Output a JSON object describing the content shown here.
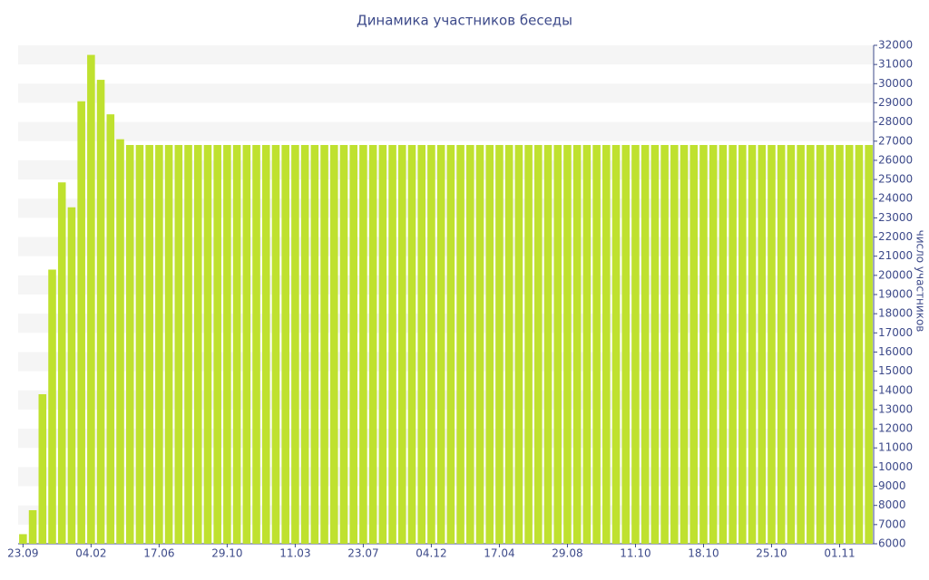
{
  "chart_data": {
    "type": "bar",
    "title": "Динамика участников беседы",
    "y_label": "число участников",
    "categories": [
      "23.09",
      null,
      null,
      null,
      null,
      null,
      null,
      "04.02",
      null,
      null,
      null,
      null,
      null,
      null,
      "17.06",
      null,
      null,
      null,
      null,
      null,
      null,
      "29.10",
      null,
      null,
      null,
      null,
      null,
      null,
      "11.03",
      null,
      null,
      null,
      null,
      null,
      null,
      "23.07",
      null,
      null,
      null,
      null,
      null,
      null,
      "04.12",
      null,
      null,
      null,
      null,
      null,
      null,
      "17.04",
      null,
      null,
      null,
      null,
      null,
      null,
      "29.08",
      null,
      null,
      null,
      null,
      null,
      null,
      "11.10",
      null,
      null,
      null,
      null,
      null,
      null,
      "18.10",
      null,
      null,
      null,
      null,
      null,
      null,
      "25.10",
      null,
      null,
      null,
      null,
      null,
      null,
      "01.11",
      null,
      null,
      null
    ],
    "values": [
      6500,
      7750,
      13800,
      20300,
      24850,
      23550,
      29080,
      31500,
      30200,
      28400,
      27100,
      26800,
      26800,
      26800,
      26800,
      26800,
      26800,
      26800,
      26800,
      26800,
      26800,
      26800,
      26800,
      26800,
      26800,
      26800,
      26800,
      26800,
      26800,
      26800,
      26800,
      26800,
      26800,
      26800,
      26800,
      26800,
      26800,
      26800,
      26800,
      26800,
      26800,
      26800,
      26800,
      26800,
      26800,
      26800,
      26800,
      26800,
      26800,
      26800,
      26800,
      26800,
      26800,
      26800,
      26800,
      26800,
      26800,
      26800,
      26800,
      26800,
      26800,
      26800,
      26800,
      26800,
      26800,
      26800,
      26800,
      26800,
      26800,
      26800,
      26800,
      26800,
      26800,
      26800,
      26800,
      26800,
      26800,
      26800,
      26800,
      26800,
      26800,
      26800,
      26800,
      26800,
      26800,
      26800,
      26800,
      26800
    ],
    "color": "#bfe12f",
    "ylim": [
      6000,
      32000
    ],
    "yticks": [
      6000,
      7000,
      8000,
      9000,
      10000,
      11000,
      12000,
      13000,
      14000,
      15000,
      16000,
      17000,
      18000,
      19000,
      20000,
      21000,
      22000,
      23000,
      24000,
      25000,
      26000,
      27000,
      28000,
      29000,
      30000,
      31000,
      32000
    ],
    "grid_bands": true
  }
}
